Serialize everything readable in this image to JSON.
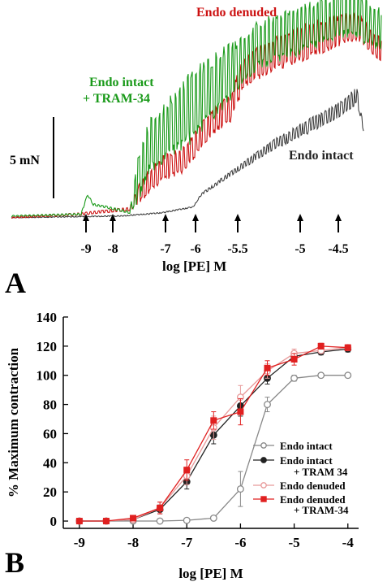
{
  "panel_a": {
    "panel_label": "A",
    "scale_bar_label": "5 mN",
    "xlabel": "log [PE] M",
    "arrow_labels": [
      "-9",
      "-8",
      "-7",
      "-6",
      "-5.5",
      "-5",
      "-4.5"
    ],
    "trace_labels": {
      "endo_denuded": "Endo denuded",
      "endo_intact_tram_line1": "Endo intact",
      "endo_intact_tram_line2": "+ TRAM-34",
      "endo_intact": "Endo intact"
    },
    "colors": {
      "endo_denuded": "#cc1111",
      "endo_intact_tram": "#1a9a1a",
      "endo_intact": "#333333"
    }
  },
  "panel_b": {
    "panel_label": "B"
  },
  "chart_data": {
    "type": "line",
    "xlabel": "log [PE] M",
    "ylabel": "% Maximum contraction",
    "xlim": [
      -9.3,
      -3.8
    ],
    "ylim": [
      -5,
      140
    ],
    "xticks": [
      -9,
      -8,
      -7,
      -6,
      -5,
      -4
    ],
    "xtick_labels": [
      "-9",
      "-8",
      "-7",
      "-6",
      "-5",
      "-4"
    ],
    "yticks": [
      0,
      20,
      40,
      60,
      80,
      100,
      120,
      140
    ],
    "ytick_labels": [
      "0",
      "20",
      "40",
      "60",
      "80",
      "100",
      "120",
      "140"
    ],
    "x": [
      -9,
      -8.5,
      -8,
      -7.5,
      -7,
      -6.5,
      -6,
      -5.5,
      -5,
      -4.5,
      -4
    ],
    "legend_position": "lower-right",
    "series": [
      {
        "name": "Endo intact",
        "legend_lines": [
          "Endo intact"
        ],
        "color": "#888888",
        "marker": "open-circle",
        "values": [
          0,
          0,
          0,
          0,
          0.5,
          2,
          22,
          80,
          98,
          100,
          100
        ],
        "errors": [
          0,
          0,
          0,
          0,
          1,
          1,
          12,
          5,
          2,
          1,
          1
        ]
      },
      {
        "name": "Endo intact + TRAM 34",
        "legend_lines": [
          "Endo intact",
          "+ TRAM 34"
        ],
        "color": "#222222",
        "marker": "filled-circle",
        "values": [
          0,
          0,
          1,
          8,
          27,
          59,
          79,
          98,
          113,
          116,
          118
        ],
        "errors": [
          0,
          0,
          1,
          3,
          5,
          6,
          7,
          4,
          3,
          2,
          2
        ]
      },
      {
        "name": "Endo denuded",
        "legend_lines": [
          "Endo denuded"
        ],
        "color": "#e89a9a",
        "marker": "open-circle",
        "values": [
          0,
          0,
          1,
          9,
          31,
          64,
          85,
          103,
          115,
          117,
          119
        ],
        "errors": [
          0,
          0,
          1,
          4,
          6,
          8,
          8,
          5,
          3,
          2,
          2
        ]
      },
      {
        "name": "Endo denuded + TRAM-34",
        "legend_lines": [
          "Endo denuded",
          "+ TRAM-34"
        ],
        "color": "#e02020",
        "marker": "filled-square",
        "values": [
          0,
          0,
          2,
          9,
          35,
          69,
          75,
          105,
          111,
          120,
          119
        ],
        "errors": [
          0,
          0,
          1,
          4,
          7,
          6,
          9,
          5,
          4,
          2,
          2
        ]
      }
    ]
  }
}
